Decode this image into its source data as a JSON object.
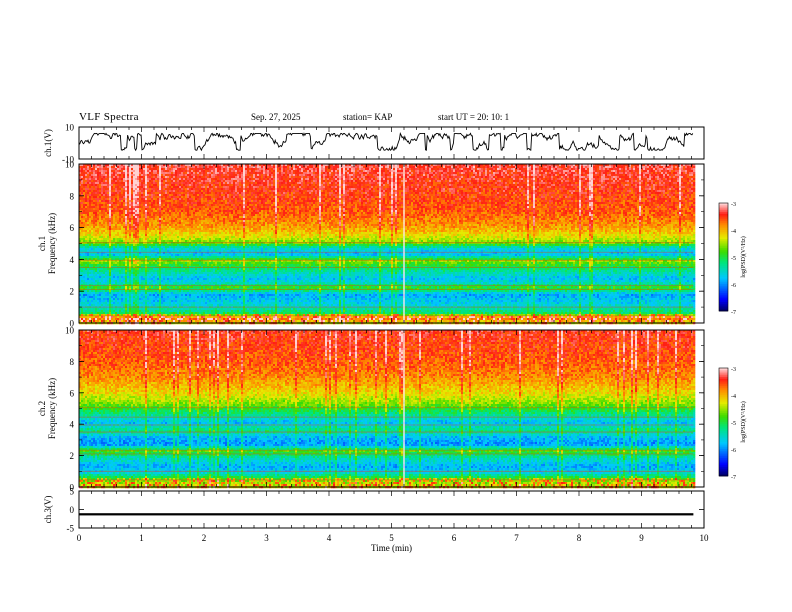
{
  "header": {
    "title": "VLF Spectra",
    "date": "Sep. 27, 2025",
    "station": "station= KAP",
    "start": "start UT =   20: 10: 1"
  },
  "chart_data": [
    {
      "id": "ch1-voltage",
      "type": "line",
      "ylabel": "ch.1(V)",
      "ylim": [
        -10,
        10
      ],
      "yticks": [
        "10",
        "-10"
      ],
      "xlim": [
        0,
        10
      ],
      "xend": 9.83,
      "amplitude_range": [
        -4.5,
        6
      ]
    },
    {
      "id": "ch1-spectrogram",
      "type": "heatmap",
      "ylabel": "ch.1\nFrequency (kHz)",
      "ylim": [
        0,
        10
      ],
      "yticks": [
        "0",
        "2",
        "4",
        "6",
        "8",
        "10"
      ],
      "xlim": [
        0,
        10
      ],
      "xend": 9.83,
      "colorbar": {
        "label": "log(PSD)(V²/Hz)",
        "ticks": [
          "-3",
          "-4",
          "-5",
          "-6",
          "-7"
        ],
        "range": [
          -7,
          -3
        ]
      },
      "level_profile_khz": [
        [
          0,
          -4.3
        ],
        [
          0.3,
          -3.6
        ],
        [
          0.6,
          -5.1
        ],
        [
          1.1,
          -5.6
        ],
        [
          1.8,
          -5.9
        ],
        [
          2.2,
          -4.8
        ],
        [
          2.5,
          -5.5
        ],
        [
          2.8,
          -5.8
        ],
        [
          3.4,
          -5.2
        ],
        [
          3.9,
          -4.6
        ],
        [
          4.3,
          -5.8
        ],
        [
          4.7,
          -5.6
        ],
        [
          5.0,
          -4.7
        ],
        [
          5.4,
          -4.3
        ],
        [
          6.0,
          -3.9
        ],
        [
          7.0,
          -3.6
        ],
        [
          10.0,
          -3.3
        ]
      ]
    },
    {
      "id": "ch2-spectrogram",
      "type": "heatmap",
      "ylabel": "ch.2\nFrequency (kHz)",
      "ylim": [
        0,
        10
      ],
      "yticks": [
        "0",
        "2",
        "4",
        "6",
        "8",
        "10"
      ],
      "xlim": [
        0,
        10
      ],
      "xend": 9.83,
      "colorbar": {
        "label": "log(PSD)(V²/Hz)",
        "ticks": [
          "-3",
          "-4",
          "-5",
          "-6",
          "-7"
        ],
        "range": [
          -7,
          -3
        ]
      },
      "level_profile_khz": [
        [
          0,
          -4.3
        ],
        [
          0.4,
          -4.6
        ],
        [
          0.9,
          -5.6
        ],
        [
          1.3,
          -5.9
        ],
        [
          1.9,
          -5.4
        ],
        [
          2.3,
          -4.8
        ],
        [
          2.7,
          -6.0
        ],
        [
          3.2,
          -5.8
        ],
        [
          3.6,
          -5.2
        ],
        [
          4.1,
          -5.8
        ],
        [
          4.7,
          -5.2
        ],
        [
          5.3,
          -4.6
        ],
        [
          6.0,
          -4.2
        ],
        [
          7.0,
          -3.8
        ],
        [
          8.0,
          -3.6
        ],
        [
          10.0,
          -3.4
        ]
      ]
    },
    {
      "id": "ch3-voltage",
      "type": "line",
      "ylabel": "ch.3(V)",
      "ylim": [
        -5,
        5
      ],
      "yticks": [
        "5",
        "0",
        "-5"
      ],
      "xlim": [
        0,
        10
      ],
      "xend": 9.83,
      "amplitude_range": [
        -1.6,
        -1.0
      ]
    }
  ],
  "xaxis": {
    "label": "Time (min)",
    "ticks": [
      "0",
      "1",
      "2",
      "3",
      "4",
      "5",
      "6",
      "7",
      "8",
      "9",
      "10"
    ]
  }
}
